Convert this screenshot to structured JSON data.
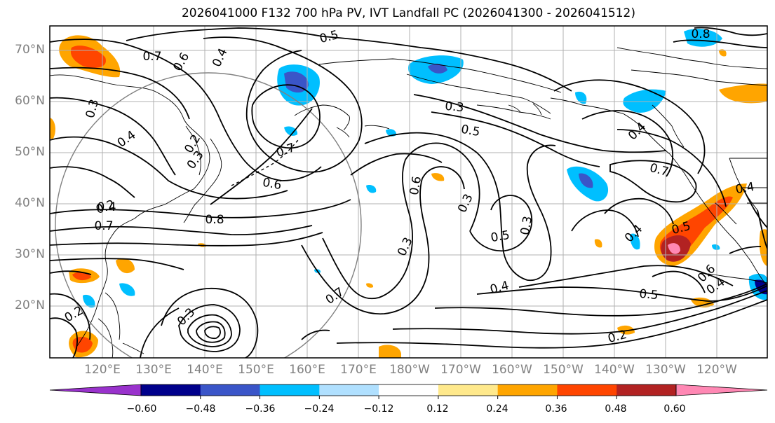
{
  "title": "2026041000 F132 700 hPa PV, IVT Landfall PC (2026041300 - 2026041512)",
  "lat_labels": [
    "70°N",
    "60°N",
    "50°N",
    "40°N",
    "30°N",
    "20°N"
  ],
  "lon_labels": [
    "120°E",
    "130°E",
    "140°E",
    "150°E",
    "160°E",
    "170°E",
    "180°W",
    "170°W",
    "160°W",
    "150°W",
    "140°W",
    "130°W",
    "120°W"
  ],
  "contour_labels": [
    "0.5",
    "0.7",
    "0.6",
    "0.4",
    "0.8",
    "0.3",
    "0.4",
    "0.2",
    "0.3",
    "0.7",
    "0.6",
    "0.4",
    "0.7",
    "0.8",
    "0.3",
    "0.5",
    "0.4",
    "0.7",
    "0.6",
    "0.3",
    "0.5",
    "0.3",
    "0.3",
    "0.4",
    "0.7",
    "0.4",
    "0.5",
    "0.4",
    "0.6",
    "0.4",
    "0.5",
    "0.2",
    "0.2",
    "0.3",
    "0.2"
  ],
  "colorbar": {
    "ticks": [
      "−0.60",
      "−0.48",
      "−0.36",
      "−0.24",
      "−0.12",
      "0.12",
      "0.24",
      "0.36",
      "0.48",
      "0.60"
    ],
    "colors": [
      "#9932cc",
      "#00008b",
      "#3a55c8",
      "#00bfff",
      "#b0e0ff",
      "#ffffff",
      "#ffe98c",
      "#ffa500",
      "#ff4500",
      "#b22222",
      "#ff88b4"
    ]
  },
  "colors": {
    "axis_label": "#808080",
    "contour": "#000000",
    "coast": "#000000",
    "grid": "#b0b0b0"
  }
}
